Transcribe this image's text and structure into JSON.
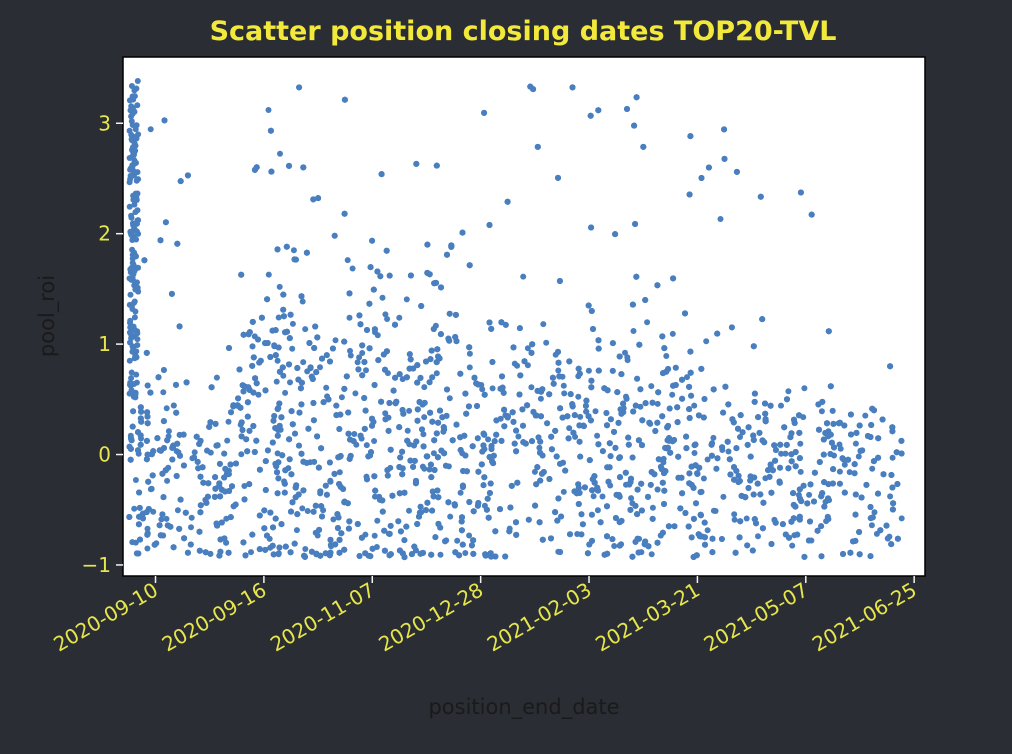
{
  "chart_data": {
    "type": "scatter",
    "title": "Scatter position closing dates TOP20-TVL",
    "xlabel": "position_end_date",
    "ylabel": "pool_roi",
    "ylim": [
      -1.1,
      3.6
    ],
    "yticks": [
      -1,
      0,
      1,
      2,
      3
    ],
    "ytick_labels": [
      "−1",
      "0",
      "1",
      "2",
      "3"
    ],
    "xlim_index": [
      -0.3,
      7.1
    ],
    "xticks": [
      0,
      1,
      2,
      3,
      4,
      5,
      6,
      7
    ],
    "xtick_labels": [
      "2020-09-10",
      "2020-09-16",
      "2020-11-07",
      "2020-12-28",
      "2021-02-03",
      "2021-03-21",
      "2021-05-07",
      "2021-06-25"
    ],
    "grid": false,
    "point_color": "#4a7fbf",
    "axes_background": "#ffffff",
    "figure_background": "#2b2d35",
    "text_color": "#f2e93a",
    "density_profile": [
      {
        "x": -0.25,
        "y_center": 0.0,
        "y_spread": 0.35,
        "weight": 5
      },
      {
        "x": 0.3,
        "y_center": -0.15,
        "y_spread": 0.4,
        "weight": 4
      },
      {
        "x": 0.7,
        "y_center": -0.05,
        "y_spread": 0.5,
        "weight": 4
      },
      {
        "x": 1.05,
        "y_center": 0.4,
        "y_spread": 0.8,
        "weight": 7
      },
      {
        "x": 1.8,
        "y_center": 0.25,
        "y_spread": 0.8,
        "weight": 6
      },
      {
        "x": 2.5,
        "y_center": 0.3,
        "y_spread": 0.8,
        "weight": 6
      },
      {
        "x": 3.0,
        "y_center": 0.0,
        "y_spread": 0.55,
        "weight": 4
      },
      {
        "x": 3.5,
        "y_center": 0.2,
        "y_spread": 0.55,
        "weight": 5
      },
      {
        "x": 4.3,
        "y_center": 0.15,
        "y_spread": 0.55,
        "weight": 5
      },
      {
        "x": 5.2,
        "y_center": -0.05,
        "y_spread": 0.45,
        "weight": 4
      },
      {
        "x": 6.0,
        "y_center": -0.1,
        "y_spread": 0.4,
        "weight": 4
      },
      {
        "x": 6.9,
        "y_center": -0.25,
        "y_spread": 0.4,
        "weight": 3
      }
    ],
    "outlier_spike": {
      "x": -0.2,
      "y_range": [
        0.5,
        3.4
      ]
    }
  }
}
